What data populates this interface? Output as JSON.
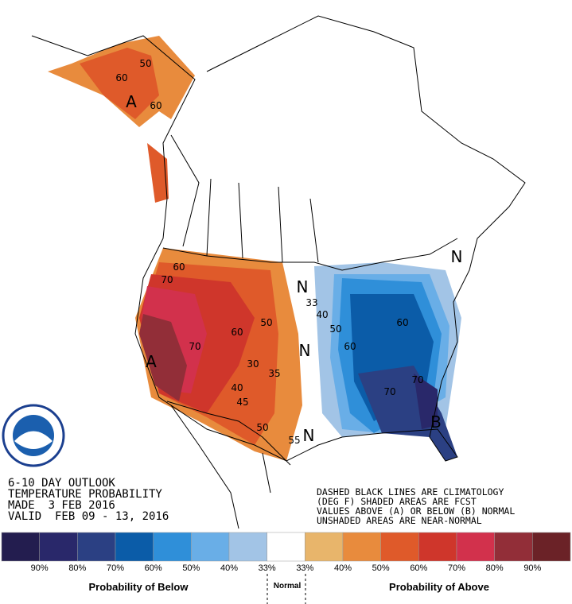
{
  "header": {
    "lines": [
      "6-10 DAY OUTLOOK",
      "TEMPERATURE PROBABILITY",
      "MADE  3 FEB 2016",
      "VALID  FEB 09 - 13, 2016"
    ]
  },
  "notes": [
    "DASHED BLACK LINES ARE CLIMATOLOGY",
    "(DEG F) SHADED AREAS ARE FCST",
    "VALUES ABOVE (A) OR BELOW (B) NORMAL",
    "UNSHADED AREAS ARE NEAR-NORMAL"
  ],
  "map_labels": [
    "A",
    "50",
    "60",
    "60",
    "60",
    "70",
    "70",
    "60",
    "50",
    "A",
    "40",
    "45",
    "50",
    "30",
    "35",
    "N",
    "33",
    "40",
    "50",
    "N",
    "60",
    "60",
    "70",
    "70",
    "B",
    "N",
    "55",
    "N"
  ],
  "legend": {
    "colors": [
      "#231d4f",
      "#29286a",
      "#2b4083",
      "#0b5ca8",
      "#2f8fd9",
      "#69aee7",
      "#a2c4e6",
      "#ffffff",
      "#e8b56b",
      "#e88b3d",
      "#df5a2a",
      "#cf362b",
      "#d2314c",
      "#922e38",
      "#6b2227"
    ],
    "labels": [
      "90%",
      "80%",
      "70%",
      "60%",
      "50%",
      "40%",
      "33%",
      "33%",
      "40%",
      "50%",
      "60%",
      "70%",
      "80%",
      "90%"
    ],
    "below": "Probability of Below",
    "normal": "Normal",
    "above": "Probability of Above"
  }
}
